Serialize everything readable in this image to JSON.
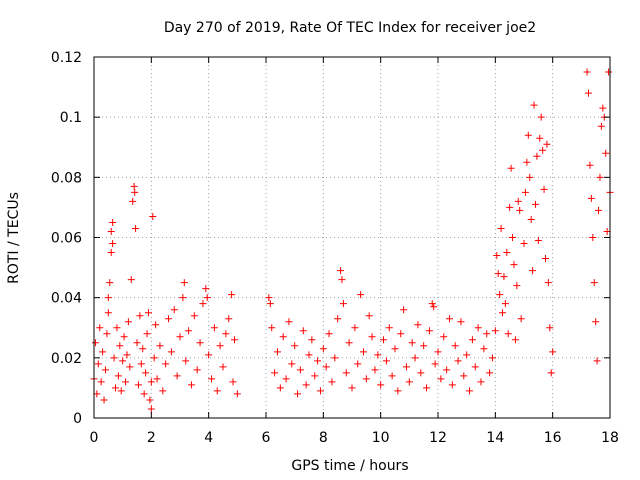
{
  "chart_data": {
    "type": "scatter",
    "title": "Day 270 of 2019, Rate Of TEC Index for receiver joe2",
    "xlabel": "GPS time / hours",
    "ylabel": "ROTI / TECUs",
    "xlim": [
      0,
      18
    ],
    "ylim": [
      0,
      0.12
    ],
    "xticks": [
      0,
      2,
      4,
      6,
      8,
      10,
      12,
      14,
      16,
      18
    ],
    "yticks": [
      0,
      0.02,
      0.04,
      0.06,
      0.08,
      0.1,
      0.12
    ],
    "xtick_labels": [
      "0",
      "2",
      "4",
      "6",
      "8",
      "10",
      "12",
      "14",
      "16",
      "18"
    ],
    "ytick_labels": [
      "0",
      "0.02",
      "0.04",
      "0.06",
      "0.08",
      "0.1",
      "0.12"
    ],
    "grid": true,
    "marker": "plus",
    "color": "#ff0000",
    "series": [
      {
        "name": "ROTI",
        "points": [
          [
            0.0,
            0.013
          ],
          [
            0.05,
            0.025
          ],
          [
            0.1,
            0.008
          ],
          [
            0.15,
            0.018
          ],
          [
            0.2,
            0.03
          ],
          [
            0.25,
            0.012
          ],
          [
            0.3,
            0.022
          ],
          [
            0.35,
            0.006
          ],
          [
            0.4,
            0.016
          ],
          [
            0.45,
            0.028
          ],
          [
            0.5,
            0.035
          ],
          [
            0.5,
            0.04
          ],
          [
            0.55,
            0.045
          ],
          [
            0.6,
            0.055
          ],
          [
            0.6,
            0.062
          ],
          [
            0.65,
            0.065
          ],
          [
            0.65,
            0.058
          ],
          [
            0.7,
            0.02
          ],
          [
            0.75,
            0.01
          ],
          [
            0.8,
            0.03
          ],
          [
            0.85,
            0.014
          ],
          [
            0.9,
            0.024
          ],
          [
            0.95,
            0.009
          ],
          [
            1.0,
            0.019
          ],
          [
            1.05,
            0.027
          ],
          [
            1.1,
            0.012
          ],
          [
            1.15,
            0.021
          ],
          [
            1.2,
            0.032
          ],
          [
            1.25,
            0.017
          ],
          [
            1.3,
            0.046
          ],
          [
            1.35,
            0.072
          ],
          [
            1.4,
            0.077
          ],
          [
            1.42,
            0.075
          ],
          [
            1.45,
            0.063
          ],
          [
            1.5,
            0.025
          ],
          [
            1.55,
            0.011
          ],
          [
            1.6,
            0.034
          ],
          [
            1.65,
            0.018
          ],
          [
            1.7,
            0.023
          ],
          [
            1.75,
            0.008
          ],
          [
            1.8,
            0.015
          ],
          [
            1.85,
            0.028
          ],
          [
            1.9,
            0.035
          ],
          [
            1.95,
            0.006
          ],
          [
            2.0,
            0.003
          ],
          [
            2.0,
            0.012
          ],
          [
            2.05,
            0.067
          ],
          [
            2.1,
            0.02
          ],
          [
            2.15,
            0.031
          ],
          [
            2.2,
            0.013
          ],
          [
            2.3,
            0.024
          ],
          [
            2.4,
            0.009
          ],
          [
            2.5,
            0.018
          ],
          [
            2.6,
            0.033
          ],
          [
            2.7,
            0.022
          ],
          [
            2.8,
            0.036
          ],
          [
            2.9,
            0.014
          ],
          [
            3.0,
            0.027
          ],
          [
            3.1,
            0.04
          ],
          [
            3.15,
            0.045
          ],
          [
            3.2,
            0.019
          ],
          [
            3.3,
            0.029
          ],
          [
            3.4,
            0.011
          ],
          [
            3.5,
            0.034
          ],
          [
            3.6,
            0.016
          ],
          [
            3.7,
            0.025
          ],
          [
            3.8,
            0.038
          ],
          [
            3.9,
            0.043
          ],
          [
            3.95,
            0.04
          ],
          [
            4.0,
            0.021
          ],
          [
            4.1,
            0.013
          ],
          [
            4.2,
            0.03
          ],
          [
            4.3,
            0.009
          ],
          [
            4.4,
            0.024
          ],
          [
            4.5,
            0.017
          ],
          [
            4.6,
            0.028
          ],
          [
            4.7,
            0.033
          ],
          [
            4.8,
            0.041
          ],
          [
            4.85,
            0.012
          ],
          [
            4.9,
            0.026
          ],
          [
            5.0,
            0.008
          ],
          [
            6.1,
            0.04
          ],
          [
            6.15,
            0.038
          ],
          [
            6.2,
            0.03
          ],
          [
            6.3,
            0.015
          ],
          [
            6.4,
            0.022
          ],
          [
            6.5,
            0.01
          ],
          [
            6.6,
            0.027
          ],
          [
            6.7,
            0.013
          ],
          [
            6.8,
            0.032
          ],
          [
            6.9,
            0.018
          ],
          [
            7.0,
            0.024
          ],
          [
            7.1,
            0.008
          ],
          [
            7.2,
            0.016
          ],
          [
            7.3,
            0.029
          ],
          [
            7.4,
            0.011
          ],
          [
            7.5,
            0.021
          ],
          [
            7.6,
            0.026
          ],
          [
            7.7,
            0.014
          ],
          [
            7.8,
            0.019
          ],
          [
            7.9,
            0.009
          ],
          [
            8.0,
            0.023
          ],
          [
            8.1,
            0.017
          ],
          [
            8.2,
            0.028
          ],
          [
            8.3,
            0.012
          ],
          [
            8.4,
            0.02
          ],
          [
            8.5,
            0.033
          ],
          [
            8.6,
            0.049
          ],
          [
            8.65,
            0.046
          ],
          [
            8.7,
            0.038
          ],
          [
            8.8,
            0.015
          ],
          [
            8.9,
            0.025
          ],
          [
            9.0,
            0.01
          ],
          [
            9.1,
            0.03
          ],
          [
            9.2,
            0.018
          ],
          [
            9.3,
            0.041
          ],
          [
            9.4,
            0.022
          ],
          [
            9.5,
            0.013
          ],
          [
            9.6,
            0.034
          ],
          [
            9.7,
            0.027
          ],
          [
            9.8,
            0.016
          ],
          [
            9.9,
            0.021
          ],
          [
            10.0,
            0.011
          ],
          [
            10.1,
            0.026
          ],
          [
            10.2,
            0.019
          ],
          [
            10.3,
            0.03
          ],
          [
            10.4,
            0.014
          ],
          [
            10.5,
            0.023
          ],
          [
            10.6,
            0.009
          ],
          [
            10.7,
            0.028
          ],
          [
            10.8,
            0.036
          ],
          [
            10.9,
            0.017
          ],
          [
            11.0,
            0.012
          ],
          [
            11.1,
            0.025
          ],
          [
            11.2,
            0.02
          ],
          [
            11.3,
            0.031
          ],
          [
            11.4,
            0.015
          ],
          [
            11.5,
            0.024
          ],
          [
            11.6,
            0.01
          ],
          [
            11.7,
            0.029
          ],
          [
            11.8,
            0.038
          ],
          [
            11.85,
            0.037
          ],
          [
            11.9,
            0.018
          ],
          [
            12.0,
            0.022
          ],
          [
            12.1,
            0.013
          ],
          [
            12.2,
            0.027
          ],
          [
            12.3,
            0.016
          ],
          [
            12.4,
            0.033
          ],
          [
            12.5,
            0.011
          ],
          [
            12.6,
            0.024
          ],
          [
            12.7,
            0.019
          ],
          [
            12.8,
            0.032
          ],
          [
            12.9,
            0.014
          ],
          [
            13.0,
            0.021
          ],
          [
            13.1,
            0.009
          ],
          [
            13.2,
            0.026
          ],
          [
            13.3,
            0.017
          ],
          [
            13.4,
            0.03
          ],
          [
            13.5,
            0.012
          ],
          [
            13.6,
            0.023
          ],
          [
            13.7,
            0.028
          ],
          [
            13.8,
            0.015
          ],
          [
            13.9,
            0.02
          ],
          [
            14.0,
            0.029
          ],
          [
            14.05,
            0.054
          ],
          [
            14.1,
            0.048
          ],
          [
            14.15,
            0.041
          ],
          [
            14.2,
            0.063
          ],
          [
            14.25,
            0.035
          ],
          [
            14.3,
            0.047
          ],
          [
            14.35,
            0.038
          ],
          [
            14.4,
            0.055
          ],
          [
            14.45,
            0.028
          ],
          [
            14.5,
            0.07
          ],
          [
            14.55,
            0.083
          ],
          [
            14.6,
            0.06
          ],
          [
            14.65,
            0.051
          ],
          [
            14.7,
            0.026
          ],
          [
            14.75,
            0.044
          ],
          [
            14.8,
            0.072
          ],
          [
            14.85,
            0.069
          ],
          [
            14.9,
            0.033
          ],
          [
            15.0,
            0.058
          ],
          [
            15.05,
            0.075
          ],
          [
            15.1,
            0.085
          ],
          [
            15.15,
            0.094
          ],
          [
            15.2,
            0.08
          ],
          [
            15.25,
            0.066
          ],
          [
            15.3,
            0.049
          ],
          [
            15.35,
            0.104
          ],
          [
            15.4,
            0.071
          ],
          [
            15.45,
            0.087
          ],
          [
            15.5,
            0.059
          ],
          [
            15.55,
            0.093
          ],
          [
            15.6,
            0.1
          ],
          [
            15.65,
            0.089
          ],
          [
            15.7,
            0.076
          ],
          [
            15.75,
            0.053
          ],
          [
            15.8,
            0.091
          ],
          [
            15.85,
            0.045
          ],
          [
            15.9,
            0.03
          ],
          [
            15.95,
            0.015
          ],
          [
            16.0,
            0.022
          ],
          [
            17.2,
            0.115
          ],
          [
            17.25,
            0.108
          ],
          [
            17.3,
            0.084
          ],
          [
            17.35,
            0.073
          ],
          [
            17.4,
            0.06
          ],
          [
            17.45,
            0.045
          ],
          [
            17.5,
            0.032
          ],
          [
            17.55,
            0.019
          ],
          [
            17.6,
            0.069
          ],
          [
            17.65,
            0.08
          ],
          [
            17.7,
            0.097
          ],
          [
            17.75,
            0.103
          ],
          [
            17.8,
            0.1
          ],
          [
            17.85,
            0.088
          ],
          [
            17.9,
            0.062
          ],
          [
            17.95,
            0.115
          ],
          [
            18.0,
            0.075
          ]
        ]
      }
    ]
  }
}
